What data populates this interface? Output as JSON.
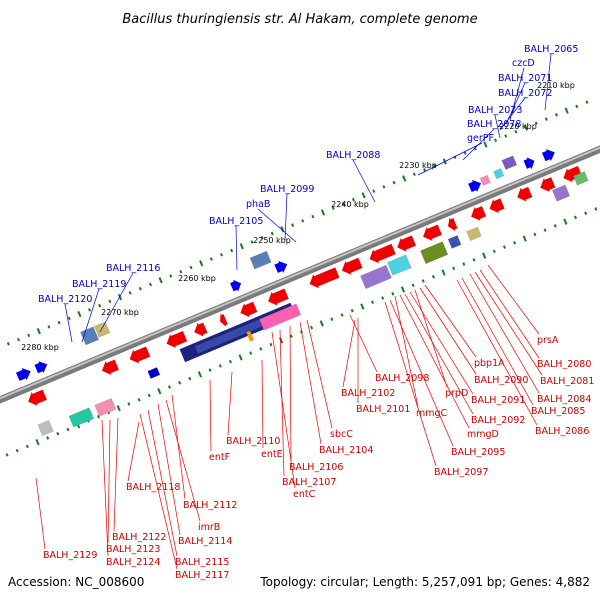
{
  "title": "Bacillus thuringiensis str. Al Hakam, complete genome",
  "footer": {
    "accession": "Accession: NC_008600",
    "topology": "Topology: circular; Length: 5,257,091 bp; Genes: 4,882"
  },
  "colors": {
    "backbone": "#8c8c8c",
    "forward_arrow": "#0000ee",
    "reverse_arrow": "#ee0000",
    "tick": "#1a7a1a",
    "label_forward": "#0000c8",
    "label_reverse": "#cc0000"
  },
  "scale_labels": [
    "2210 kbp",
    "2220 kbp",
    "2230 kbp",
    "2240 kbp",
    "2250 kbp",
    "2260 kbp",
    "2270 kbp",
    "2280 kbp"
  ],
  "labels_forward": [
    "BALH_2065",
    "czcD",
    "BALH_2071",
    "BALH_2072",
    "BALH_2073",
    "BALH_2078",
    "gerPF",
    "BALH_2088",
    "BALH_2099",
    "phaB",
    "BALH_2105",
    "BALH_2116",
    "BALH_2119",
    "BALH_2120"
  ],
  "labels_reverse": [
    "prsA",
    "BALH_2080",
    "BALH_2081",
    "BALH_2084",
    "BALH_2085",
    "BALH_2086",
    "pbp1A",
    "BALH_2090",
    "prpD",
    "BALH_2091",
    "BALH_2092",
    "BALH_2098",
    "mmgC",
    "mmgD",
    "BALH_2095",
    "BALH_2097",
    "BALH_2102",
    "BALH_2101",
    "sbcC",
    "BALH_2104",
    "BALH_2106",
    "BALH_2107",
    "entC",
    "BALH_2110",
    "entE",
    "entF",
    "BALH_2118",
    "BALH_2112",
    "imrB",
    "BALH_2114",
    "BALH_2115",
    "BALH_2117",
    "BALH_2122",
    "BALH_2123",
    "BALH_2124",
    "BALH_2129"
  ]
}
